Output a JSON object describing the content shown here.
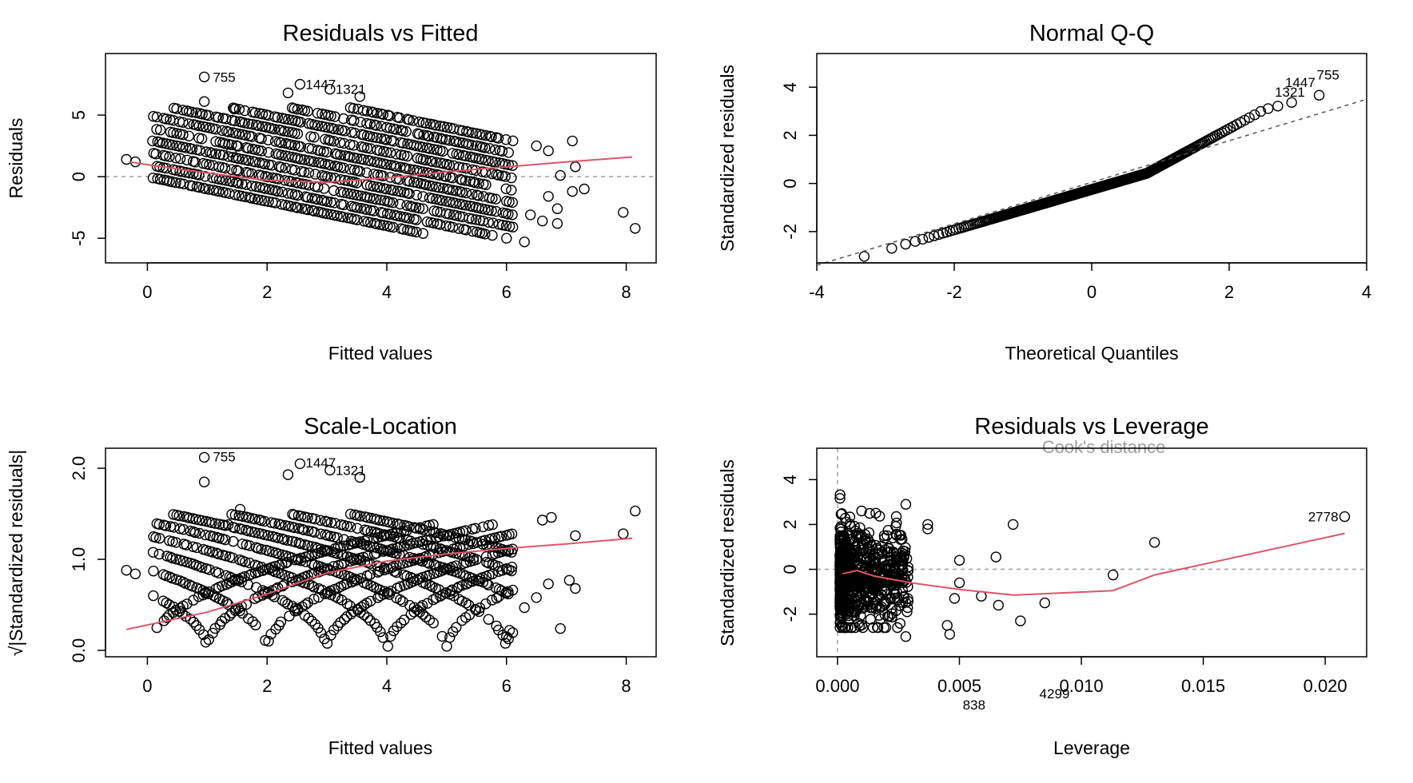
{
  "chart_data": [
    {
      "id": "p1",
      "type": "scatter",
      "title": "Residuals vs Fitted",
      "xlabel": "Fitted values",
      "ylabel": "Residuals",
      "xlim": [
        -0.7,
        8.5
      ],
      "ylim": [
        -7,
        10
      ],
      "xticks": [
        0,
        2,
        4,
        6,
        8
      ],
      "xtick_labels": [
        "0",
        "2",
        "4",
        "6",
        "8"
      ],
      "yticks": [
        -5,
        0,
        5
      ],
      "ytick_labels": [
        "-5",
        "0",
        "5"
      ],
      "refline_y": 0,
      "smooth": [
        [
          -0.3,
          1.2
        ],
        [
          0.1,
          0.9
        ],
        [
          1,
          0.3
        ],
        [
          2,
          -0.3
        ],
        [
          3,
          -0.45
        ],
        [
          4,
          -0.1
        ],
        [
          5,
          0.4
        ],
        [
          6,
          0.8
        ],
        [
          7,
          1.2
        ],
        [
          8.1,
          1.6
        ]
      ],
      "annotations": [
        {
          "text": "755",
          "x": 1.0,
          "y": 8.1
        },
        {
          "text": "1447",
          "x": 2.55,
          "y": 7.5
        },
        {
          "text": "1321",
          "x": 3.05,
          "y": 7.1
        }
      ],
      "outliers": [
        [
          -0.35,
          1.4
        ],
        [
          -0.2,
          1.2
        ],
        [
          6.5,
          2.5
        ],
        [
          6.7,
          2.1
        ],
        [
          7.1,
          2.9
        ],
        [
          7.15,
          0.8
        ],
        [
          7.3,
          -1.0
        ],
        [
          7.1,
          -1.2
        ],
        [
          6.9,
          0.1
        ],
        [
          6.7,
          -1.6
        ],
        [
          7.95,
          -2.9
        ],
        [
          8.15,
          -4.2
        ],
        [
          6.85,
          -2.6
        ],
        [
          6.85,
          -3.8
        ],
        [
          6.6,
          -3.6
        ],
        [
          6.3,
          -5.3
        ],
        [
          6.0,
          -5.0
        ],
        [
          6.4,
          -3.1
        ],
        [
          1.45,
          5.5
        ],
        [
          1.4,
          2.0
        ],
        [
          0.95,
          8.1
        ],
        [
          2.55,
          7.5
        ],
        [
          3.05,
          7.1
        ],
        [
          2.35,
          6.8
        ],
        [
          0.95,
          6.1
        ],
        [
          3.55,
          6.5
        ]
      ]
    },
    {
      "id": "p2",
      "type": "scatter",
      "title": "Normal Q-Q",
      "xlabel": "Theoretical Quantiles",
      "ylabel": "Standardized residuals",
      "xlim": [
        -4,
        4
      ],
      "ylim": [
        -3.3,
        5.4
      ],
      "xticks": [
        -4,
        -2,
        0,
        2,
        4
      ],
      "xtick_labels": [
        "-4",
        "-2",
        "0",
        "2",
        "4"
      ],
      "yticks": [
        -2,
        0,
        2,
        4
      ],
      "ytick_labels": [
        "-2",
        "0",
        "2",
        "4"
      ],
      "qq_line": [
        [
          -4,
          -3.4
        ],
        [
          4,
          3.5
        ]
      ],
      "annotations": [
        {
          "text": "755",
          "x": 3.65,
          "y": 4.52
        },
        {
          "text": "1447",
          "x": 3.3,
          "y": 4.2
        },
        {
          "text": "1321",
          "x": 3.15,
          "y": 3.8
        }
      ]
    },
    {
      "id": "p3",
      "type": "scatter",
      "title": "Scale-Location",
      "xlabel": "Fitted values",
      "ylabel": "√|Standardized residuals|",
      "xlim": [
        -0.7,
        8.5
      ],
      "ylim": [
        -0.07,
        2.22
      ],
      "xticks": [
        0,
        2,
        4,
        6,
        8
      ],
      "xtick_labels": [
        "0",
        "2",
        "4",
        "6",
        "8"
      ],
      "yticks": [
        0,
        1,
        2
      ],
      "ytick_labels": [
        "0.0",
        "1.0",
        "2.0"
      ],
      "smooth": [
        [
          -0.35,
          0.23
        ],
        [
          1,
          0.42
        ],
        [
          2,
          0.62
        ],
        [
          3,
          0.85
        ],
        [
          4,
          0.98
        ],
        [
          5,
          1.06
        ],
        [
          6,
          1.12
        ],
        [
          7,
          1.17
        ],
        [
          8.1,
          1.23
        ]
      ],
      "annotations": [
        {
          "text": "755",
          "x": 1.0,
          "y": 2.13
        },
        {
          "text": "1447",
          "x": 2.55,
          "y": 2.06
        },
        {
          "text": "1321",
          "x": 3.05,
          "y": 1.98
        }
      ],
      "outliers": [
        [
          -0.35,
          0.88
        ],
        [
          -0.2,
          0.84
        ],
        [
          0.95,
          2.12
        ],
        [
          0.95,
          1.85
        ],
        [
          2.35,
          1.93
        ],
        [
          2.55,
          2.05
        ],
        [
          3.05,
          1.98
        ],
        [
          3.55,
          1.9
        ],
        [
          6.6,
          1.43
        ],
        [
          6.75,
          1.46
        ],
        [
          7.15,
          1.26
        ],
        [
          7.15,
          0.68
        ],
        [
          7.05,
          0.77
        ],
        [
          6.9,
          0.24
        ],
        [
          7.95,
          1.28
        ],
        [
          8.15,
          1.53
        ],
        [
          6.3,
          0.47
        ],
        [
          6.5,
          0.58
        ],
        [
          6.7,
          0.73
        ],
        [
          6.0,
          0.15
        ],
        [
          6.05,
          0.22
        ],
        [
          1.55,
          1.55
        ],
        [
          1.35,
          1.38
        ]
      ]
    },
    {
      "id": "p4",
      "type": "scatter",
      "title": "Residuals vs Leverage",
      "xlabel": "Leverage",
      "ylabel": "Standardized residuals",
      "xlim": [
        -0.00085,
        0.0217
      ],
      "ylim": [
        -3.9,
        5.4
      ],
      "xticks": [
        0,
        0.005,
        0.01,
        0.015,
        0.02
      ],
      "xtick_labels": [
        "0.000",
        "0.005",
        "0.010",
        "0.015",
        "0.020"
      ],
      "yticks": [
        -2,
        0,
        2,
        4
      ],
      "ytick_labels": [
        "-2",
        "0",
        "2",
        "4"
      ],
      "refline_y": 0,
      "refline_x": 0,
      "cooks_label": "Cook's distance",
      "smooth": [
        [
          0.0002,
          -0.2
        ],
        [
          0.0008,
          -0.05
        ],
        [
          0.0015,
          -0.3
        ],
        [
          0.003,
          -0.6
        ],
        [
          0.005,
          -0.9
        ],
        [
          0.0072,
          -1.15
        ],
        [
          0.0113,
          -0.95
        ],
        [
          0.013,
          -0.25
        ],
        [
          0.0208,
          1.6
        ]
      ],
      "annotations": [
        {
          "text": "2778",
          "x": 0.0208,
          "y": 2.35
        },
        {
          "text": "838",
          "x": 0.0056,
          "y": -6.0
        },
        {
          "text": "4299",
          "x": 0.0089,
          "y": -5.6
        }
      ],
      "outliers": [
        [
          0.0208,
          2.35
        ],
        [
          0.013,
          1.2
        ],
        [
          0.0113,
          -0.25
        ],
        [
          0.0072,
          2.0
        ],
        [
          0.0065,
          0.55
        ],
        [
          0.0085,
          -1.5
        ],
        [
          0.0075,
          -2.3
        ],
        [
          0.0046,
          -2.9
        ],
        [
          0.0028,
          -3.0
        ],
        [
          0.0059,
          -1.2
        ],
        [
          0.0066,
          -1.6
        ],
        [
          0.005,
          0.4
        ],
        [
          0.005,
          -0.6
        ],
        [
          0.0048,
          -1.3
        ],
        [
          0.0037,
          1.8
        ],
        [
          0.0037,
          2.0
        ],
        [
          0.0028,
          2.9
        ],
        [
          0.0045,
          -2.5
        ]
      ]
    }
  ]
}
